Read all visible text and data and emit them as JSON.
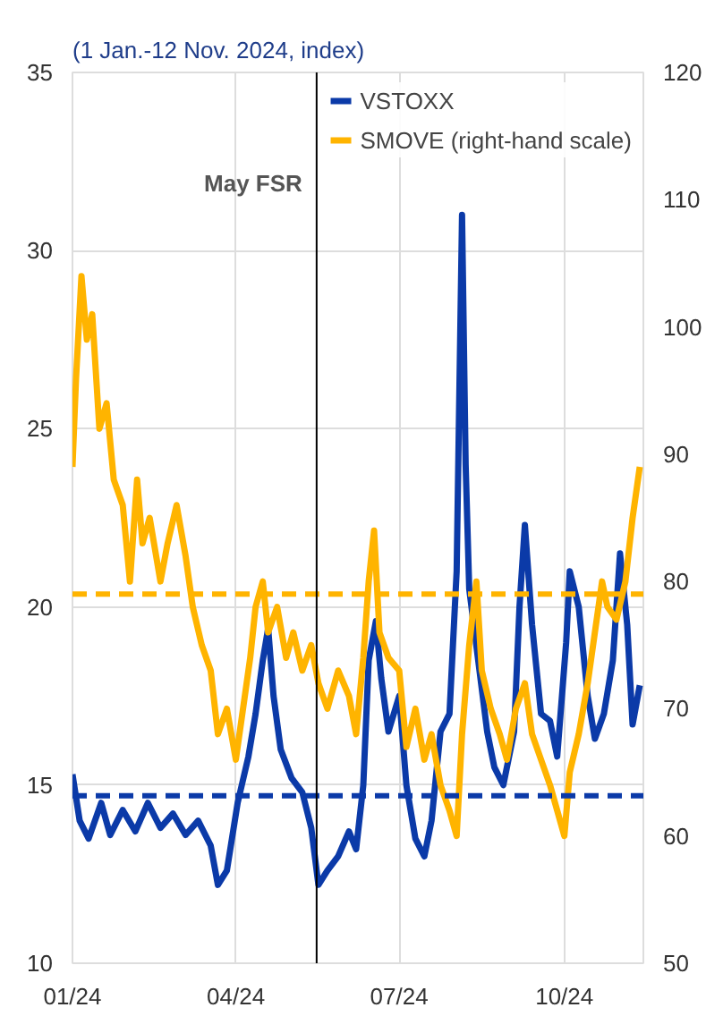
{
  "chart_data": {
    "type": "line",
    "title": "(1 Jan.-12 Nov. 2024, index)",
    "xlim": [
      "2024-01-01",
      "2024-11-14"
    ],
    "xticks": [
      {
        "value": "2024-01-01",
        "label": "01/24"
      },
      {
        "value": "2024-04-01",
        "label": "04/24"
      },
      {
        "value": "2024-07-01",
        "label": "07/24"
      },
      {
        "value": "2024-10-01",
        "label": "10/24"
      }
    ],
    "ylim": [
      10,
      35
    ],
    "yticks": [
      10,
      15,
      20,
      25,
      30,
      35
    ],
    "y2lim": [
      50,
      120
    ],
    "y2ticks": [
      50,
      60,
      70,
      80,
      90,
      100,
      110,
      120
    ],
    "grid": true,
    "legend": "top right",
    "line_style": "solid",
    "series": [
      {
        "name": "VSTOXX",
        "color": "#0b3aa8",
        "x": [
          "2024-01-01",
          "2024-01-05",
          "2024-01-10",
          "2024-01-17",
          "2024-01-22",
          "2024-01-29",
          "2024-02-05",
          "2024-02-12",
          "2024-02-19",
          "2024-02-26",
          "2024-03-04",
          "2024-03-11",
          "2024-03-18",
          "2024-03-22",
          "2024-03-27",
          "2024-04-02",
          "2024-04-08",
          "2024-04-12",
          "2024-04-16",
          "2024-04-19",
          "2024-04-22",
          "2024-04-26",
          "2024-05-02",
          "2024-05-08",
          "2024-05-13",
          "2024-05-17",
          "2024-05-22",
          "2024-05-28",
          "2024-06-03",
          "2024-06-07",
          "2024-06-11",
          "2024-06-14",
          "2024-06-18",
          "2024-06-21",
          "2024-06-25",
          "2024-07-01",
          "2024-07-05",
          "2024-07-10",
          "2024-07-15",
          "2024-07-19",
          "2024-07-24",
          "2024-07-29",
          "2024-08-02",
          "2024-08-05",
          "2024-08-07",
          "2024-08-09",
          "2024-08-14",
          "2024-08-19",
          "2024-08-23",
          "2024-08-28",
          "2024-09-03",
          "2024-09-06",
          "2024-09-09",
          "2024-09-13",
          "2024-09-18",
          "2024-09-23",
          "2024-09-27",
          "2024-10-02",
          "2024-10-04",
          "2024-10-09",
          "2024-10-14",
          "2024-10-18",
          "2024-10-23",
          "2024-10-28",
          "2024-11-01",
          "2024-11-05",
          "2024-11-08",
          "2024-11-12"
        ],
        "values": [
          15.3,
          14.0,
          13.5,
          14.5,
          13.6,
          14.3,
          13.7,
          14.5,
          13.8,
          14.2,
          13.6,
          14.0,
          13.3,
          12.2,
          12.6,
          14.5,
          15.8,
          17.0,
          18.5,
          19.4,
          17.5,
          16.0,
          15.2,
          14.8,
          13.8,
          12.2,
          12.6,
          13.0,
          13.7,
          13.2,
          15.0,
          18.5,
          19.6,
          18.0,
          16.5,
          17.5,
          15.0,
          13.5,
          13.0,
          14.0,
          16.5,
          17.0,
          21.0,
          31.0,
          24.0,
          20.5,
          18.5,
          16.5,
          15.5,
          15.0,
          16.5,
          20.0,
          22.3,
          19.5,
          17.0,
          16.8,
          15.8,
          19.0,
          21.0,
          20.0,
          17.5,
          16.3,
          17.0,
          18.5,
          21.5,
          19.5,
          16.7,
          17.8
        ]
      },
      {
        "name": "SMOVE (right-hand scale)",
        "color": "#ffb400",
        "axis": "y2",
        "x": [
          "2024-01-01",
          "2024-01-03",
          "2024-01-06",
          "2024-01-09",
          "2024-01-12",
          "2024-01-16",
          "2024-01-20",
          "2024-01-24",
          "2024-01-29",
          "2024-02-02",
          "2024-02-06",
          "2024-02-09",
          "2024-02-13",
          "2024-02-19",
          "2024-02-23",
          "2024-02-28",
          "2024-03-04",
          "2024-03-08",
          "2024-03-13",
          "2024-03-18",
          "2024-03-22",
          "2024-03-27",
          "2024-04-01",
          "2024-04-05",
          "2024-04-09",
          "2024-04-12",
          "2024-04-16",
          "2024-04-19",
          "2024-04-24",
          "2024-04-29",
          "2024-05-03",
          "2024-05-08",
          "2024-05-13",
          "2024-05-17",
          "2024-05-22",
          "2024-05-28",
          "2024-06-03",
          "2024-06-07",
          "2024-06-11",
          "2024-06-14",
          "2024-06-17",
          "2024-06-20",
          "2024-06-25",
          "2024-07-01",
          "2024-07-05",
          "2024-07-10",
          "2024-07-15",
          "2024-07-19",
          "2024-07-24",
          "2024-07-29",
          "2024-08-02",
          "2024-08-05",
          "2024-08-09",
          "2024-08-13",
          "2024-08-16",
          "2024-08-21",
          "2024-08-26",
          "2024-08-30",
          "2024-09-04",
          "2024-09-09",
          "2024-09-13",
          "2024-09-18",
          "2024-09-23",
          "2024-09-27",
          "2024-10-01",
          "2024-10-04",
          "2024-10-09",
          "2024-10-14",
          "2024-10-18",
          "2024-10-22",
          "2024-10-25",
          "2024-10-30",
          "2024-11-04",
          "2024-11-08",
          "2024-11-12"
        ],
        "values": [
          89,
          96,
          104,
          99,
          101,
          92,
          94,
          88,
          86,
          80,
          88,
          83,
          85,
          80,
          83,
          86,
          82,
          78,
          75,
          73,
          68,
          70,
          66,
          70,
          74,
          78,
          80,
          76,
          78,
          74,
          76,
          73,
          75,
          72,
          70,
          73,
          71,
          68,
          74,
          80,
          84,
          76,
          74,
          73,
          67,
          70,
          66,
          68,
          64,
          62,
          60,
          68,
          75,
          80,
          73,
          70,
          68,
          66,
          70,
          72,
          68,
          66,
          64,
          62,
          60,
          65,
          68,
          72,
          76,
          80,
          78,
          77,
          80,
          85,
          89
        ]
      }
    ],
    "ref_lines": [
      {
        "axis": "y",
        "value": 14.7,
        "color": "#0b3aa8",
        "line_style": "dashed"
      },
      {
        "axis": "y2",
        "value": 79,
        "color": "#ffb400",
        "line_style": "dashed"
      },
      {
        "axis": "x",
        "value": "2024-05-16",
        "label": "May FSR",
        "color": "#000000",
        "line_style": "solid"
      }
    ]
  }
}
